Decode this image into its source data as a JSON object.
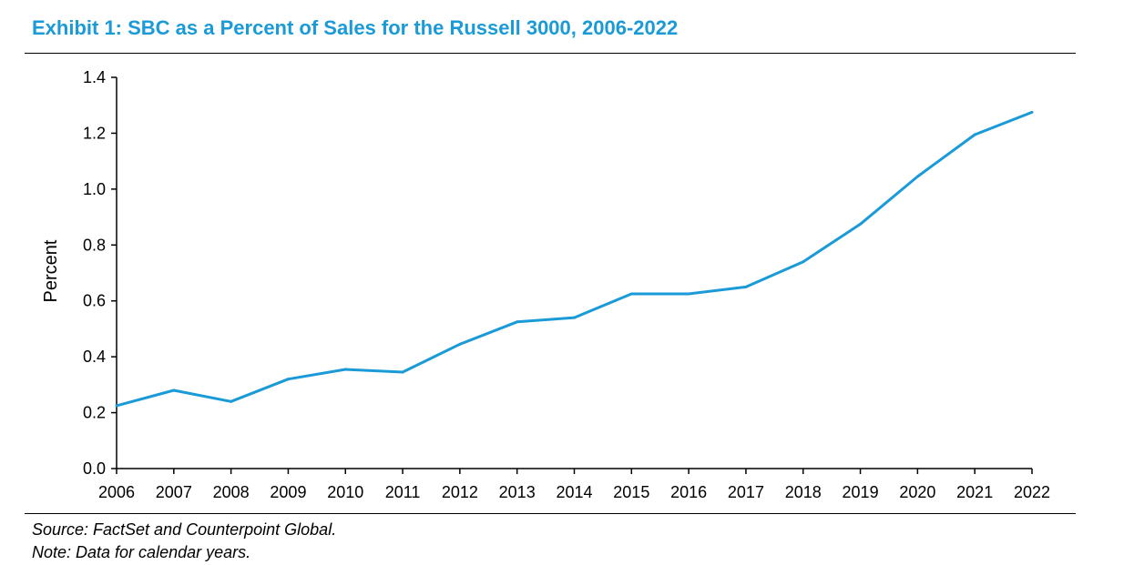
{
  "title": "Exhibit 1: SBC as a Percent of Sales for the Russell 3000, 2006-2022",
  "source": "Source: FactSet and Counterpoint Global.",
  "note": "Note: Data for calendar years.",
  "colors": {
    "title": "#1a9ad6",
    "line": "#1a9ad6",
    "axis": "#000000"
  },
  "chart_data": {
    "type": "line",
    "xlabel": "",
    "ylabel": "Percent",
    "categories": [
      "2006",
      "2007",
      "2008",
      "2009",
      "2010",
      "2011",
      "2012",
      "2013",
      "2014",
      "2015",
      "2016",
      "2017",
      "2018",
      "2019",
      "2020",
      "2021",
      "2022"
    ],
    "series": [
      {
        "values": [
          0.225,
          0.28,
          0.24,
          0.32,
          0.355,
          0.345,
          0.445,
          0.525,
          0.54,
          0.625,
          0.625,
          0.65,
          0.74,
          0.875,
          1.045,
          1.195,
          1.275
        ]
      }
    ],
    "ylim": [
      0.0,
      1.4
    ],
    "yticks": [
      "0.0",
      "0.2",
      "0.4",
      "0.6",
      "0.8",
      "1.0",
      "1.2",
      "1.4"
    ],
    "grid": false,
    "legend": "none"
  }
}
